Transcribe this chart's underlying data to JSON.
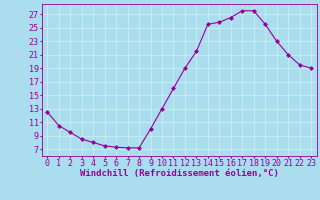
{
  "hours": [
    0,
    1,
    2,
    3,
    4,
    5,
    6,
    7,
    8,
    9,
    10,
    11,
    12,
    13,
    14,
    15,
    16,
    17,
    18,
    19,
    20,
    21,
    22,
    23
  ],
  "windchill": [
    12.5,
    10.5,
    9.5,
    8.5,
    8.0,
    7.5,
    7.3,
    7.2,
    7.2,
    10.0,
    13.0,
    16.0,
    19.0,
    21.5,
    25.5,
    25.8,
    26.5,
    27.5,
    27.5,
    25.5,
    23.0,
    21.0,
    19.5,
    19.0
  ],
  "line_color": "#990099",
  "marker": "D",
  "marker_size": 2.0,
  "bg_color": "#aaddee",
  "grid_color": "#cceeee",
  "xlabel": "Windchill (Refroidissement éolien,°C)",
  "ylabel_ticks": [
    7,
    9,
    11,
    13,
    15,
    17,
    19,
    21,
    23,
    25,
    27
  ],
  "ylim": [
    6.0,
    28.5
  ],
  "xlim": [
    -0.5,
    23.5
  ],
  "tick_color": "#990099",
  "label_color": "#990099",
  "font_size": 6.0,
  "xlabel_font_size": 6.5,
  "figsize": [
    3.2,
    2.0
  ],
  "dpi": 100
}
